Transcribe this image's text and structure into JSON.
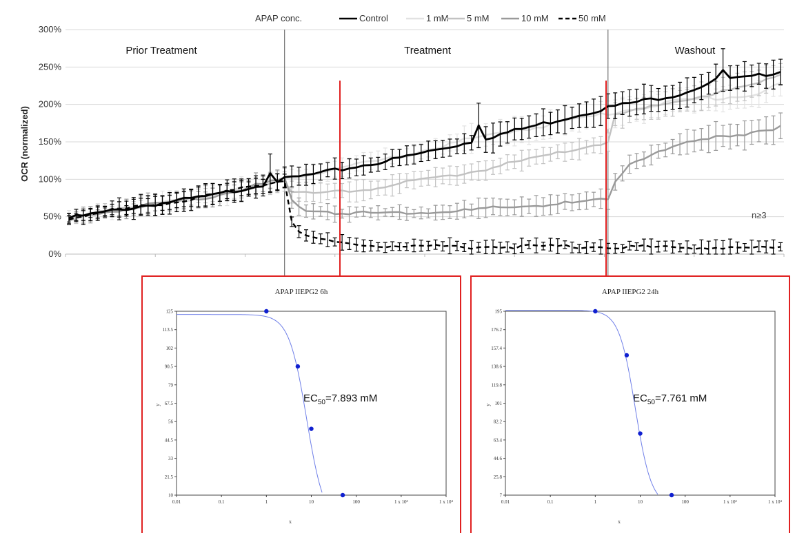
{
  "chart_data": [
    {
      "type": "line",
      "legend_title": "APAP conc.",
      "legend_position": "top",
      "ylabel": "OCR (normalized)",
      "ylim": [
        0,
        300
      ],
      "yticks": [
        "0%",
        "50%",
        "100%",
        "150%",
        "200%",
        "250%",
        "300%"
      ],
      "grid": "horizontal",
      "phases": [
        "Prior Treatment",
        "Treatment",
        "Washout"
      ],
      "annotation": "n≥3",
      "x_points": 100,
      "treatment_start": 30,
      "washout_start": 75,
      "series": [
        {
          "name": "Control",
          "color": "#000000",
          "dash": "solid",
          "anchors": [
            [
              0,
              48
            ],
            [
              10,
              64
            ],
            [
              20,
              78
            ],
            [
              30,
              100
            ],
            [
              35,
              108
            ],
            [
              45,
              126
            ],
            [
              55,
              148
            ],
            [
              65,
              172
            ],
            [
              75,
              196
            ],
            [
              85,
              214
            ],
            [
              90,
              232
            ],
            [
              95,
              236
            ],
            [
              99,
              245
            ]
          ],
          "spikes": [
            [
              28,
              108
            ],
            [
              57,
              172
            ],
            [
              91,
              246
            ]
          ]
        },
        {
          "name": "1 mM",
          "color": "#e2e2e2",
          "dash": "solid",
          "anchors": [
            [
              0,
              48
            ],
            [
              10,
              64
            ],
            [
              20,
              78
            ],
            [
              30,
              100
            ],
            [
              35,
              110
            ],
            [
              45,
              128
            ],
            [
              55,
              152
            ],
            [
              65,
              170
            ],
            [
              75,
              188
            ],
            [
              85,
              205
            ],
            [
              95,
              212
            ],
            [
              99,
              228
            ]
          ],
          "spikes": []
        },
        {
          "name": "5 mM",
          "color": "#c2c2c2",
          "dash": "solid",
          "anchors": [
            [
              0,
              48
            ],
            [
              10,
              64
            ],
            [
              20,
              78
            ],
            [
              30,
              100
            ],
            [
              31,
              84
            ],
            [
              35,
              80
            ],
            [
              45,
              92
            ],
            [
              55,
              108
            ],
            [
              65,
              128
            ],
            [
              75,
              150
            ],
            [
              76,
              185
            ],
            [
              85,
              205
            ],
            [
              95,
              225
            ],
            [
              99,
              240
            ]
          ],
          "spikes": []
        },
        {
          "name": "10 mM",
          "color": "#9a9a9a",
          "dash": "solid",
          "anchors": [
            [
              0,
              48
            ],
            [
              10,
              64
            ],
            [
              20,
              78
            ],
            [
              30,
              100
            ],
            [
              31,
              70
            ],
            [
              33,
              60
            ],
            [
              38,
              55
            ],
            [
              45,
              55
            ],
            [
              55,
              58
            ],
            [
              65,
              65
            ],
            [
              75,
              72
            ],
            [
              76,
              95
            ],
            [
              78,
              122
            ],
            [
              82,
              138
            ],
            [
              88,
              152
            ],
            [
              95,
              163
            ],
            [
              99,
              170
            ]
          ],
          "spikes": []
        },
        {
          "name": "50 mM",
          "color": "#000000",
          "dash": "dashed",
          "anchors": [
            [
              0,
              48
            ],
            [
              10,
              64
            ],
            [
              20,
              78
            ],
            [
              30,
              100
            ],
            [
              31,
              45
            ],
            [
              32,
              30
            ],
            [
              34,
              20
            ],
            [
              38,
              14
            ],
            [
              45,
              11
            ],
            [
              55,
              10
            ],
            [
              65,
              10
            ],
            [
              75,
              10
            ],
            [
              85,
              9
            ],
            [
              99,
              8
            ]
          ],
          "spikes": []
        }
      ]
    },
    {
      "type": "scatter",
      "title": "APAP IIEPG2 6h",
      "xlabel": "x",
      "ylabel": "y",
      "xscale": "log",
      "xticks": [
        "0.01",
        "0.1",
        "1",
        "10",
        "100",
        "1 x 10³",
        "1 x 10⁴"
      ],
      "yticks": [
        "10",
        "21.5",
        "33",
        "44.5",
        "56",
        "67.5",
        "79",
        "90.5",
        "102",
        "113.5",
        "125"
      ],
      "ylim": [
        10,
        125
      ],
      "points": [
        [
          1,
          125
        ],
        [
          5,
          90.5
        ],
        [
          10,
          51.5
        ],
        [
          50,
          10
        ]
      ],
      "fit": {
        "top": 123,
        "bottom": -8,
        "ec50": 7.893,
        "hill": 2.2
      },
      "annotation_prefix": "EC",
      "annotation_sub": "50",
      "annotation_value": "=7.893 mM"
    },
    {
      "type": "scatter",
      "title": "APAP IIEPG2 24h",
      "xlabel": "x",
      "ylabel": "y",
      "xscale": "log",
      "xticks": [
        "0.01",
        "0.1",
        "1",
        "10",
        "100",
        "1 x 10³",
        "1 x 10⁴"
      ],
      "yticks": [
        "7",
        "25.8",
        "44.6",
        "63.4",
        "82.2",
        "101",
        "119.8",
        "138.6",
        "157.4",
        "176.2",
        "195"
      ],
      "ylim": [
        7,
        195
      ],
      "points": [
        [
          1,
          195
        ],
        [
          5,
          150
        ],
        [
          10,
          70
        ],
        [
          50,
          7
        ]
      ],
      "fit": {
        "top": 196,
        "bottom": -4,
        "ec50": 7.761,
        "hill": 2.4
      },
      "annotation_prefix": "EC",
      "annotation_sub": "50",
      "annotation_value": "=7.761 mM"
    }
  ],
  "colors": {
    "highlight_red": "#e02020",
    "fit_line": "#6f7fe8",
    "fit_point": "#1020d0",
    "grid": "#d9d9d9"
  }
}
